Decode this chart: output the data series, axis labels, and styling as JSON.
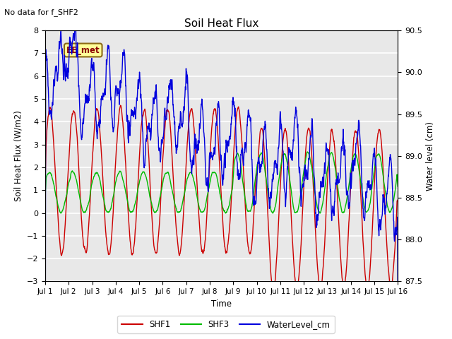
{
  "title": "Soil Heat Flux",
  "note": "No data for f_SHF2",
  "ylabel_left": "Soil Heat Flux (W/m2)",
  "ylabel_right": "Water level (cm)",
  "xlabel": "Time",
  "ylim_left": [
    -3.0,
    8.0
  ],
  "ylim_right": [
    87.5,
    90.5
  ],
  "xtick_labels": [
    "Jul 1",
    "Jul 2",
    "Jul 3",
    "Jul 4",
    "Jul 5",
    "Jul 6",
    "Jul 7",
    "Jul 8",
    "Jul 9",
    "Jul 10",
    "Jul 11",
    "Jul 12",
    "Jul 13",
    "Jul 14",
    "Jul 15",
    "Jul 16"
  ],
  "yticks_left": [
    -3.0,
    -2.0,
    -1.0,
    0.0,
    1.0,
    2.0,
    3.0,
    4.0,
    5.0,
    6.0,
    7.0,
    8.0
  ],
  "yticks_right": [
    87.5,
    88.0,
    88.5,
    89.0,
    89.5,
    90.0,
    90.5
  ],
  "color_SHF1": "#cc0000",
  "color_SHF3": "#00bb00",
  "color_WaterLevel": "#0000dd",
  "fig_facecolor": "#ffffff",
  "plot_facecolor": "#e8e8e8",
  "legend_label_SHF1": "SHF1",
  "legend_label_SHF3": "SHF3",
  "legend_label_WL": "WaterLevel_cm",
  "station_label": "EE_met",
  "n_points": 1500
}
